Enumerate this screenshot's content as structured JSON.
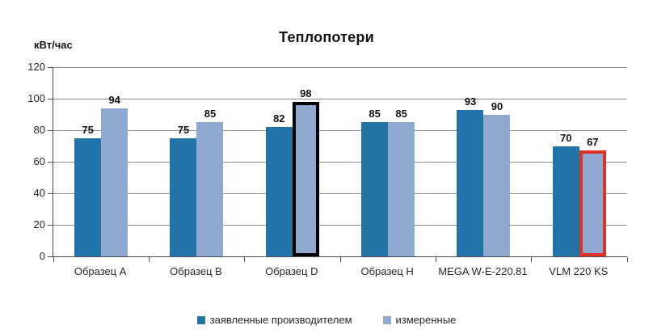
{
  "title": "Теплопотери",
  "chart_data": {
    "type": "bar",
    "title": "Теплопотери",
    "ylabel": "кВт/час",
    "xlabel": "",
    "categories": [
      "Образец A",
      "Образец B",
      "Образец D",
      "Образец H",
      "MEGA W-E-220.81",
      "VLM 220 KS"
    ],
    "series": [
      {
        "name": "заявленные производителем",
        "color": "#2173A8",
        "values": [
          75,
          75,
          82,
          85,
          93,
          70
        ]
      },
      {
        "name": "измеренные",
        "color": "#8FA9D0",
        "values": [
          94,
          85,
          98,
          85,
          90,
          67
        ]
      }
    ],
    "data_labels": [
      [
        "75",
        "75",
        "82",
        "85",
        "93",
        "70"
      ],
      [
        "94",
        "85",
        "98",
        "85",
        "90",
        "67"
      ]
    ],
    "ylim": [
      0,
      120
    ],
    "yticks": [
      0,
      20,
      40,
      60,
      80,
      100,
      120
    ],
    "grid": true,
    "legend_position": "bottom",
    "highlights": [
      {
        "series_index": 1,
        "category_index": 2,
        "border_color": "#000000"
      },
      {
        "series_index": 1,
        "category_index": 5,
        "border_color": "#DF3227"
      }
    ]
  },
  "colors": {
    "grid": "#8C8C8C",
    "axis": "#4D4D4D",
    "series1": "#2173A8",
    "series2": "#8FA9D0",
    "highlight_black": "#000000",
    "highlight_red": "#DF3227"
  }
}
